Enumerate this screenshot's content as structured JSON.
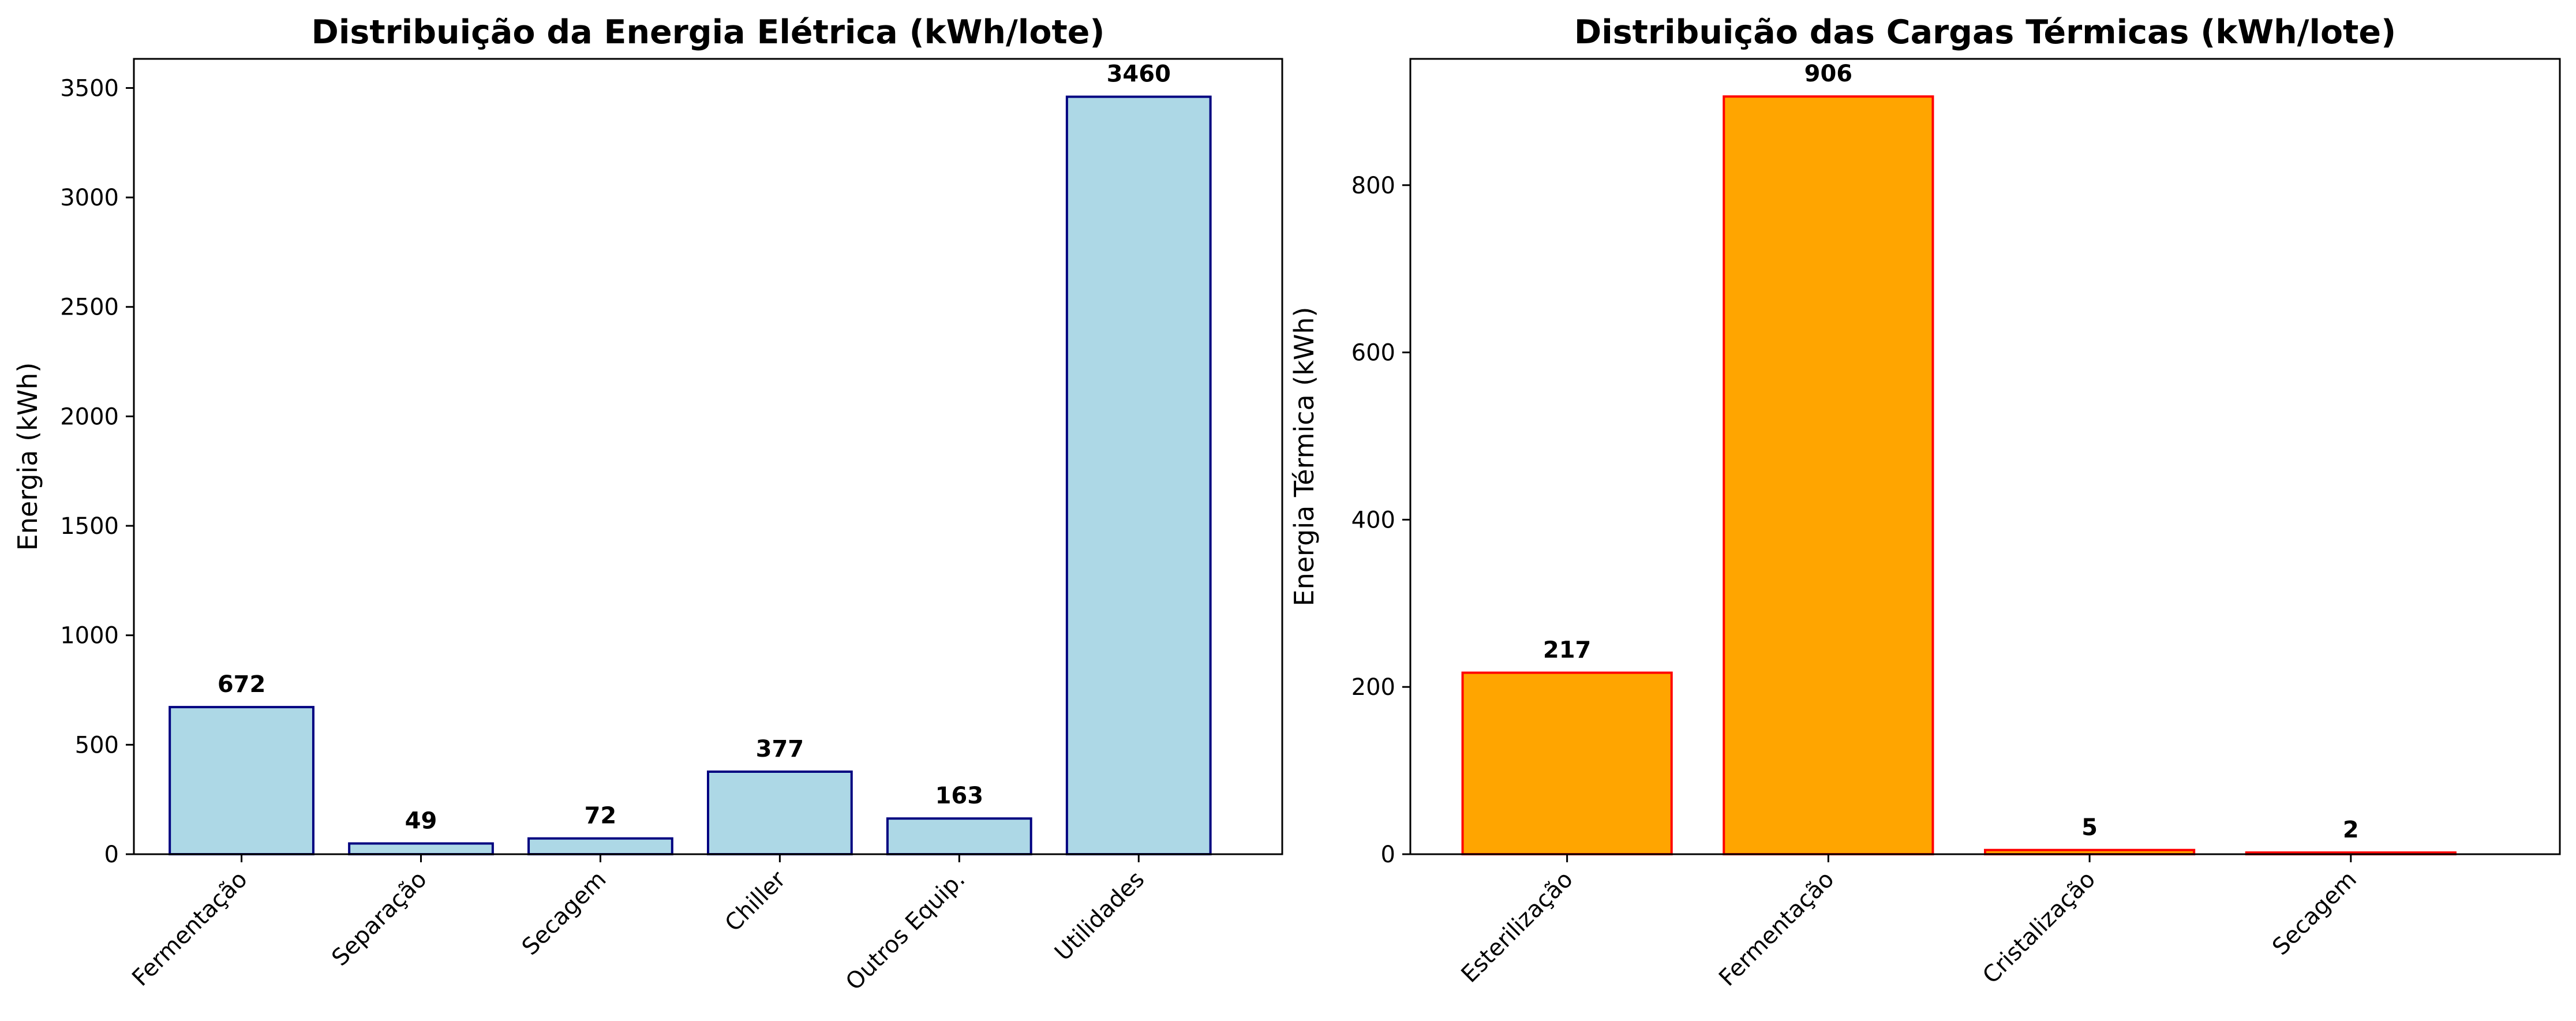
{
  "chart_data": [
    {
      "type": "bar",
      "title": "Distribuição da Energia Elétrica (kWh/lote)",
      "xlabel": "",
      "ylabel": "Energia (kWh)",
      "categories": [
        "Fermentação",
        "Separação",
        "Secagem",
        "Chiller",
        "Outros Equip.",
        "Utilidades"
      ],
      "values": [
        672,
        49,
        72,
        377,
        163,
        3460
      ],
      "value_labels": [
        "672",
        "49",
        "72",
        "377",
        "163",
        "3460"
      ],
      "ylim": [
        0,
        3633
      ],
      "yticks": [
        0,
        500,
        1000,
        1500,
        2000,
        2500,
        3000,
        3500
      ],
      "ytick_labels": [
        "0",
        "500",
        "1000",
        "1500",
        "2000",
        "2500",
        "3000",
        "3500"
      ],
      "grid": false,
      "bar_color": "#add8e6",
      "edge_color": "#000080"
    },
    {
      "type": "bar",
      "title": "Distribuição das Cargas Térmicas (kWh/lote)",
      "xlabel": "",
      "ylabel": "Energia Térmica (kWh)",
      "categories": [
        "Esterilização",
        "Fermentação",
        "Cristalização",
        "Secagem"
      ],
      "values": [
        217,
        906,
        5,
        2
      ],
      "value_labels": [
        "217",
        "906",
        "5",
        "2"
      ],
      "ylim": [
        0,
        951
      ],
      "yticks": [
        0,
        200,
        400,
        600,
        800
      ],
      "ytick_labels": [
        "0",
        "200",
        "400",
        "600",
        "800"
      ],
      "grid": false,
      "bar_color": "#ffa500",
      "edge_color": "#ff0000"
    }
  ]
}
